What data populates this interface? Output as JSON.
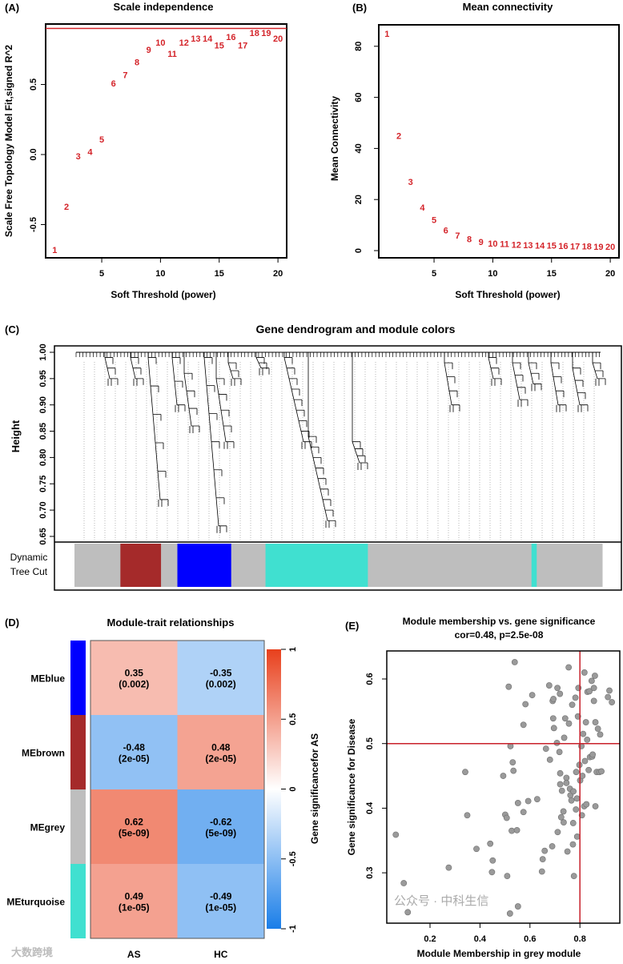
{
  "chart_data": [
    {
      "panel": "(A)",
      "type": "scatter",
      "title": "Scale independence",
      "xlabel": "Soft Threshold (power)",
      "ylabel": "Scale Free Topology Model Fit,signed R^2",
      "xticks": [
        "5",
        "10",
        "15",
        "20"
      ],
      "yticks": [
        "-0.5",
        "0.0",
        "0.5"
      ],
      "threshold_line": 0.9,
      "x": [
        1,
        2,
        3,
        4,
        5,
        6,
        7,
        8,
        9,
        10,
        11,
        12,
        13,
        14,
        15,
        16,
        17,
        18,
        19,
        20
      ],
      "values": [
        -0.68,
        -0.37,
        -0.01,
        0.02,
        0.11,
        0.51,
        0.57,
        0.66,
        0.75,
        0.8,
        0.72,
        0.8,
        0.83,
        0.83,
        0.78,
        0.84,
        0.78,
        0.87,
        0.87,
        0.83
      ],
      "point_color": "#d4242a"
    },
    {
      "panel": "(B)",
      "type": "scatter",
      "title": "Mean connectivity",
      "xlabel": "Soft Threshold (power)",
      "ylabel": "Mean Connectivity",
      "xticks": [
        "5",
        "10",
        "15",
        "20"
      ],
      "yticks": [
        "0",
        "20",
        "40",
        "60",
        "80"
      ],
      "x": [
        1,
        2,
        3,
        4,
        5,
        6,
        7,
        8,
        9,
        10,
        11,
        12,
        13,
        14,
        15,
        16,
        17,
        18,
        19,
        20
      ],
      "values": [
        85,
        45,
        27,
        17,
        12,
        8,
        6,
        4.5,
        3.5,
        2.8,
        2.6,
        2.4,
        2.2,
        2.1,
        2,
        1.9,
        1.8,
        1.7,
        1.6,
        1.5
      ],
      "point_color": "#d4242a"
    },
    {
      "panel": "(C)",
      "type": "dendrogram",
      "title": "Gene dendrogram and module colors",
      "ylabel": "Height",
      "yticks": [
        "0.65",
        "0.70",
        "0.75",
        "0.80",
        "0.85",
        "0.90",
        "0.95",
        "1.00"
      ],
      "colorbar_label": [
        "Dynamic",
        "Tree Cut"
      ],
      "module_segments": [
        {
          "color": "#bebebe",
          "from": 0,
          "to": 0.087
        },
        {
          "color": "#a52a2a",
          "from": 0.087,
          "to": 0.164
        },
        {
          "color": "#bebebe",
          "from": 0.164,
          "to": 0.195
        },
        {
          "color": "#0000ff",
          "from": 0.195,
          "to": 0.297
        },
        {
          "color": "#bebebe",
          "from": 0.297,
          "to": 0.362
        },
        {
          "color": "#40e0d0",
          "from": 0.362,
          "to": 0.556
        },
        {
          "color": "#bebebe",
          "from": 0.556,
          "to": 0.866
        },
        {
          "color": "#40e0d0",
          "from": 0.866,
          "to": 0.876
        },
        {
          "color": "#bebebe",
          "from": 0.876,
          "to": 1
        }
      ]
    },
    {
      "panel": "(D)",
      "type": "heatmap",
      "title": "Module-trait relationships",
      "rows": [
        "MEblue",
        "MEbrown",
        "MEgrey",
        "MEturquoise"
      ],
      "row_colors": [
        "#0000ff",
        "#a52a2a",
        "#bebebe",
        "#40e0d0"
      ],
      "columns": [
        "AS",
        "HC"
      ],
      "values": [
        [
          0.35,
          -0.35
        ],
        [
          -0.48,
          0.48
        ],
        [
          0.62,
          -0.62
        ],
        [
          0.49,
          -0.49
        ]
      ],
      "labels": [
        [
          "0.35",
          "-0.35"
        ],
        [
          "-0.48",
          "0.48"
        ],
        [
          "0.62",
          "-0.62"
        ],
        [
          "0.49",
          "-0.49"
        ]
      ],
      "pvalues": [
        [
          "(0.002)",
          "(0.002)"
        ],
        [
          "(2e-05)",
          "(2e-05)"
        ],
        [
          "(5e-09)",
          "(5e-09)"
        ],
        [
          "(1e-05)",
          "(1e-05)"
        ]
      ],
      "legend_ticks": [
        "1",
        "0.5",
        "0",
        "-0.5",
        "-1"
      ],
      "legend_label": "Gene significancefor AS",
      "color_high": "#e8401c",
      "color_low": "#1a7ee8"
    },
    {
      "panel": "(E)",
      "type": "scatter",
      "title": "Module membership vs. gene significance",
      "subtitle": "cor=0.48, p=2.5e-08",
      "xlabel": "Module Membership in grey module",
      "ylabel": "Gene significance for  Disease",
      "xticks": [
        "0.2",
        "0.4",
        "0.6",
        "0.8"
      ],
      "yticks": [
        "0.3",
        "0.4",
        "0.5",
        "0.6"
      ],
      "ref_x": 0.8,
      "ref_y": 0.5,
      "points": [
        [
          0.063,
          0.359
        ],
        [
          0.095,
          0.284
        ],
        [
          0.111,
          0.239
        ],
        [
          0.275,
          0.308
        ],
        [
          0.341,
          0.456
        ],
        [
          0.349,
          0.389
        ],
        [
          0.386,
          0.337
        ],
        [
          0.441,
          0.345
        ],
        [
          0.451,
          0.319
        ],
        [
          0.448,
          0.301
        ],
        [
          0.493,
          0.45
        ],
        [
          0.501,
          0.39
        ],
        [
          0.507,
          0.385
        ],
        [
          0.509,
          0.295
        ],
        [
          0.52,
          0.237
        ],
        [
          0.515,
          0.588
        ],
        [
          0.522,
          0.496
        ],
        [
          0.527,
          0.365
        ],
        [
          0.531,
          0.471
        ],
        [
          0.534,
          0.458
        ],
        [
          0.539,
          0.626
        ],
        [
          0.548,
          0.366
        ],
        [
          0.552,
          0.248
        ],
        [
          0.552,
          0.408
        ],
        [
          0.574,
          0.529
        ],
        [
          0.574,
          0.394
        ],
        [
          0.582,
          0.561
        ],
        [
          0.593,
          0.411
        ],
        [
          0.609,
          0.575
        ],
        [
          0.629,
          0.414
        ],
        [
          0.648,
          0.302
        ],
        [
          0.651,
          0.321
        ],
        [
          0.659,
          0.334
        ],
        [
          0.664,
          0.492
        ],
        [
          0.677,
          0.59
        ],
        [
          0.68,
          0.475
        ],
        [
          0.689,
          0.341
        ],
        [
          0.691,
          0.566
        ],
        [
          0.693,
          0.539
        ],
        [
          0.696,
          0.524
        ],
        [
          0.694,
          0.569
        ],
        [
          0.71,
          0.586
        ],
        [
          0.711,
          0.363
        ],
        [
          0.708,
          0.501
        ],
        [
          0.718,
          0.487
        ],
        [
          0.72,
          0.577
        ],
        [
          0.721,
          0.454
        ],
        [
          0.721,
          0.437
        ],
        [
          0.725,
          0.386
        ],
        [
          0.728,
          0.427
        ],
        [
          0.734,
          0.395
        ],
        [
          0.735,
          0.378
        ],
        [
          0.737,
          0.509
        ],
        [
          0.741,
          0.539
        ],
        [
          0.746,
          0.447
        ],
        [
          0.746,
          0.439
        ],
        [
          0.75,
          0.333
        ],
        [
          0.755,
          0.618
        ],
        [
          0.756,
          0.531
        ],
        [
          0.76,
          0.43
        ],
        [
          0.762,
          0.42
        ],
        [
          0.766,
          0.412
        ],
        [
          0.769,
          0.56
        ],
        [
          0.772,
          0.344
        ],
        [
          0.773,
          0.377
        ],
        [
          0.774,
          0.426
        ],
        [
          0.776,
          0.295
        ],
        [
          0.782,
          0.571
        ],
        [
          0.784,
          0.398
        ],
        [
          0.785,
          0.456
        ],
        [
          0.788,
          0.415
        ],
        [
          0.789,
          0.356
        ],
        [
          0.792,
          0.542
        ],
        [
          0.794,
          0.586
        ],
        [
          0.798,
          0.467
        ],
        [
          0.801,
          0.443
        ],
        [
          0.806,
          0.496
        ],
        [
          0.808,
          0.389
        ],
        [
          0.81,
          0.45
        ],
        [
          0.813,
          0.515
        ],
        [
          0.817,
          0.403
        ],
        [
          0.818,
          0.61
        ],
        [
          0.82,
          0.473
        ],
        [
          0.824,
          0.533
        ],
        [
          0.826,
          0.406
        ],
        [
          0.829,
          0.506
        ],
        [
          0.83,
          0.58
        ],
        [
          0.835,
          0.459
        ],
        [
          0.838,
          0.581
        ],
        [
          0.84,
          0.479
        ],
        [
          0.847,
          0.597
        ],
        [
          0.849,
          0.48
        ],
        [
          0.851,
          0.483
        ],
        [
          0.856,
          0.586
        ],
        [
          0.856,
          0.566
        ],
        [
          0.86,
          0.605
        ],
        [
          0.862,
          0.533
        ],
        [
          0.862,
          0.403
        ],
        [
          0.867,
          0.456
        ],
        [
          0.872,
          0.523
        ],
        [
          0.878,
          0.456
        ],
        [
          0.881,
          0.514
        ],
        [
          0.886,
          0.457
        ],
        [
          0.912,
          0.572
        ],
        [
          0.918,
          0.582
        ],
        [
          0.928,
          0.564
        ]
      ]
    }
  ],
  "watermarks": [
    "大数跨境",
    "公众号 · 中科生信"
  ]
}
